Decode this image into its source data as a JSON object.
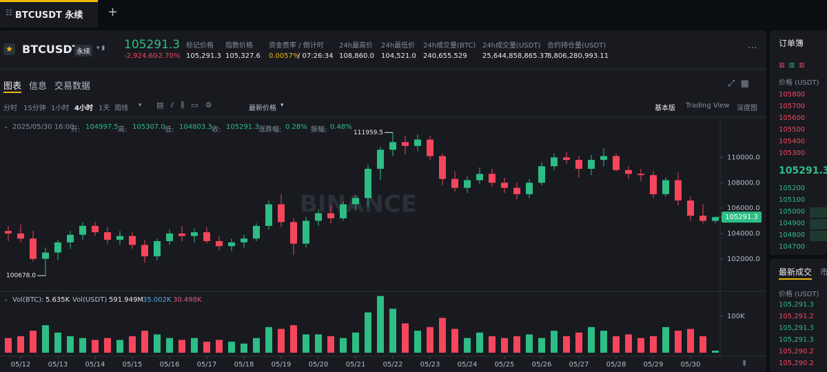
{
  "tab_bar": {
    "tab": "BTCUSDT 永续",
    "add": "+"
  },
  "header": {
    "symbol": "BTCUSDT",
    "badge": "永续",
    "last_price": "105291.3",
    "change": "-2,924.60",
    "change_pct": "-2.70%",
    "stats": [
      {
        "label": "标记价格",
        "value": "105,291.3"
      },
      {
        "label": "指数价格",
        "value": "105,327.6"
      },
      {
        "label": "资金费率 / 倒计时",
        "value": "0.0057%",
        "value2": "/ 07:26:34"
      },
      {
        "label": "24h最高价",
        "value": "108,860.0"
      },
      {
        "label": "24h最低价",
        "value": "104,521.0"
      },
      {
        "label": "24h成交量(BTC)",
        "value": "240,655.529"
      },
      {
        "label": "24h成交量(USDT)",
        "value": "25,644,858,865.37"
      },
      {
        "label": "合约持仓量(USDT)",
        "value": "8,806,280,993.11"
      }
    ]
  },
  "tabs": [
    "图表",
    "信息",
    "交易数据"
  ],
  "toolbar": {
    "intervals": [
      "分时",
      "15分钟",
      "1小时",
      "4小时",
      "1天",
      "周线"
    ],
    "active_interval": 3,
    "price_type": "最新价格",
    "views": [
      "基本版",
      "Trading View",
      "深度图"
    ],
    "active_view": 0
  },
  "info": {
    "time": "2025/05/30 16:00",
    "fields": [
      {
        "label": "开:",
        "value": "104997.5"
      },
      {
        "label": "高:",
        "value": "105307.0"
      },
      {
        "label": "低:",
        "value": "104803.3"
      },
      {
        "label": "收:",
        "value": "105291.3"
      },
      {
        "label": "涨跌幅:",
        "value": "0.28%"
      },
      {
        "label": "振幅:",
        "value": "0.48%"
      }
    ]
  },
  "volume_info": {
    "fields": [
      {
        "label": "Vol(BTC):",
        "value": "5.635K"
      },
      {
        "label": "Vol(USDT)",
        "value": "591.949M"
      }
    ],
    "ma": [
      {
        "value": "35.002K",
        "color": "#5aa9e6"
      },
      {
        "value": "30.498K",
        "color": "#e05a8c"
      }
    ]
  },
  "watermark": "BINANCE",
  "chart_data": {
    "type": "candlestick",
    "up_color": "#2ebd85",
    "down_color": "#f6465d",
    "grid": false,
    "categories": [
      null,
      "05/12",
      null,
      null,
      "05/13",
      null,
      null,
      "05/14",
      null,
      null,
      "05/15",
      null,
      null,
      "05/16",
      null,
      null,
      "05/17",
      null,
      null,
      "05/18",
      null,
      null,
      "05/19",
      null,
      null,
      "05/20",
      null,
      null,
      "05/21",
      null,
      null,
      "05/22",
      null,
      null,
      "05/23",
      null,
      null,
      "05/24",
      null,
      null,
      "05/25",
      null,
      null,
      "05/26",
      null,
      null,
      "05/27",
      null,
      null,
      "05/28",
      null,
      null,
      "05/29",
      null,
      null,
      "05/30",
      null,
      null
    ],
    "open": [
      104200,
      104000,
      103600,
      102000,
      102500,
      103300,
      103900,
      104600,
      104100,
      103500,
      103800,
      103100,
      102200,
      103400,
      104000,
      103800,
      104100,
      103400,
      103000,
      103300,
      103600,
      104600,
      106300,
      104900,
      103200,
      105000,
      105600,
      105200,
      106300,
      106800,
      109100,
      110600,
      111200,
      110900,
      111400,
      110100,
      108300,
      107600,
      108200,
      108700,
      108000,
      107600,
      107100,
      108000,
      109300,
      110000,
      109800,
      109100,
      109800,
      110100,
      109000,
      108700,
      108600,
      107100,
      108200,
      106600,
      105400,
      104997.5
    ],
    "high": [
      104600,
      104700,
      104200,
      102900,
      103500,
      104200,
      104900,
      104900,
      104500,
      104200,
      104100,
      103500,
      103600,
      104300,
      104600,
      104400,
      104500,
      103800,
      103600,
      103900,
      104800,
      106600,
      107100,
      105200,
      105300,
      105900,
      106200,
      106500,
      107000,
      109400,
      110800,
      111959.5,
      111700,
      111800,
      111700,
      110300,
      108900,
      108500,
      109200,
      109100,
      108400,
      108000,
      108300,
      109600,
      110300,
      110400,
      110100,
      110200,
      110700,
      110300,
      109300,
      109100,
      108900,
      108400,
      108800,
      106900,
      106300,
      105307.0
    ],
    "low": [
      103400,
      103300,
      101800,
      100678,
      101900,
      102800,
      103500,
      103800,
      103200,
      103100,
      102800,
      101700,
      101900,
      103100,
      103400,
      103300,
      103200,
      102700,
      102600,
      102900,
      103400,
      104300,
      104500,
      102300,
      102900,
      104600,
      104800,
      105000,
      105800,
      106100,
      108200,
      110100,
      110200,
      110500,
      109800,
      107800,
      107300,
      107200,
      107900,
      107700,
      107200,
      106700,
      106800,
      107800,
      109000,
      109500,
      108400,
      108600,
      109300,
      108900,
      108300,
      108100,
      106800,
      106900,
      106200,
      105000,
      104800,
      104803.3
    ],
    "close": [
      104000,
      103600,
      102000,
      102500,
      103300,
      103900,
      104600,
      104100,
      103500,
      103800,
      103100,
      102200,
      103400,
      104000,
      103800,
      104100,
      103400,
      103000,
      103300,
      103600,
      104600,
      106300,
      104900,
      103200,
      105000,
      105600,
      105200,
      106300,
      106800,
      109100,
      110600,
      111200,
      110900,
      111400,
      110100,
      108300,
      107600,
      108200,
      108700,
      108000,
      107600,
      107100,
      108000,
      109300,
      110000,
      109800,
      109100,
      109800,
      110100,
      109000,
      108700,
      108600,
      107100,
      108200,
      106600,
      105400,
      104997.5,
      105291.3
    ],
    "ylim": [
      99600,
      112900
    ],
    "yticks": [
      {
        "value": 102000,
        "label": "102000.0"
      },
      {
        "value": 104000,
        "label": "104000.0"
      },
      {
        "value": 106000,
        "label": "106000.0"
      },
      {
        "value": 108000,
        "label": "108000.0"
      },
      {
        "value": 110000,
        "label": "110000.0"
      }
    ],
    "max_label": "111959.5",
    "min_label": "100678.0",
    "last_label": "105291.3",
    "volume": {
      "values": [
        40000,
        45000,
        60000,
        75000,
        55000,
        45000,
        40000,
        35000,
        40000,
        35000,
        45000,
        60000,
        50000,
        40000,
        35000,
        40000,
        30000,
        35000,
        30000,
        25000,
        40000,
        70000,
        65000,
        75000,
        50000,
        50000,
        45000,
        40000,
        55000,
        110000,
        155000,
        120000,
        80000,
        60000,
        70000,
        95000,
        65000,
        40000,
        55000,
        45000,
        40000,
        45000,
        50000,
        40000,
        60000,
        45000,
        55000,
        70000,
        60000,
        45000,
        50000,
        40000,
        45000,
        70000,
        60000,
        65000,
        45000,
        5635
      ],
      "ylim": [
        0,
        158000
      ],
      "yticks": [
        {
          "value": 100000,
          "label": "100K"
        }
      ]
    }
  },
  "order_book": {
    "title": "订单簿",
    "header": "价格 (USDT)",
    "asks": [
      "105800",
      "105700",
      "105600",
      "105500",
      "105400",
      "105300"
    ],
    "last": "105291.3",
    "bids": [
      "105200",
      "105100",
      "105000",
      "104900",
      "104800",
      "104700"
    ]
  },
  "trades": {
    "title": "最新成交",
    "tab2": "市",
    "header": "价格 (USDT)",
    "rows": [
      {
        "price": "105,291.3",
        "color": "#2ebd85"
      },
      {
        "price": "105,291.2",
        "color": "#f6465d"
      },
      {
        "price": "105,291.3",
        "color": "#2ebd85"
      },
      {
        "price": "105,291.3",
        "color": "#2ebd85"
      },
      {
        "price": "105,290.2",
        "color": "#f6465d"
      },
      {
        "price": "105,290.2",
        "color": "#f6465d"
      }
    ]
  }
}
